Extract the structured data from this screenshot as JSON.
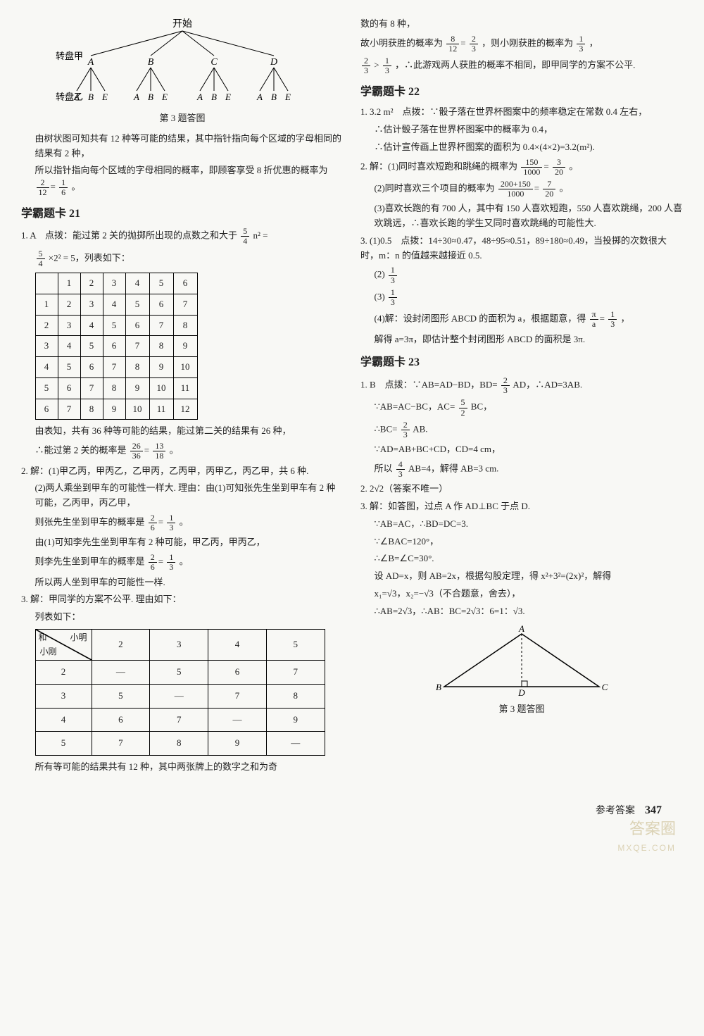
{
  "left": {
    "tree": {
      "root": "开始",
      "row1_label": "转盘甲",
      "row2_label": "转盘乙",
      "level1": [
        "A",
        "B",
        "C",
        "D"
      ],
      "level2": [
        "A",
        "B",
        "E",
        "A",
        "B",
        "E",
        "A",
        "B",
        "E",
        "A",
        "B",
        "E"
      ],
      "caption": "第 3 题答图"
    },
    "tree_text1": "由树状图可知共有 12 种等可能的结果，其中指针指向每个区域的字母相同的结果有 2 种，",
    "tree_text2a": "所以指针指向每个区域的字母相同的概率，即顾客享受 8 折优惠的概率为",
    "tree_text2b": "。",
    "card21_title": "学霸题卡 21",
    "c21_q1a": "1. A　点拨：能过第 2 关的抛掷所出现的点数之和大于",
    "c21_q1b": "n² =",
    "c21_q1c": "×2² = 5，列表如下：",
    "table1": {
      "header": [
        "",
        "1",
        "2",
        "3",
        "4",
        "5",
        "6"
      ],
      "rows": [
        [
          "1",
          "2",
          "3",
          "4",
          "5",
          "6",
          "7"
        ],
        [
          "2",
          "3",
          "4",
          "5",
          "6",
          "7",
          "8"
        ],
        [
          "3",
          "4",
          "5",
          "6",
          "7",
          "8",
          "9"
        ],
        [
          "4",
          "5",
          "6",
          "7",
          "8",
          "9",
          "10"
        ],
        [
          "5",
          "6",
          "7",
          "8",
          "9",
          "10",
          "11"
        ],
        [
          "6",
          "7",
          "8",
          "9",
          "10",
          "11",
          "12"
        ]
      ]
    },
    "c21_t1a": "由表知，共有 36 种等可能的结果，能过第二关的结果有 26 种，",
    "c21_t1b_pre": "∴能过第 2 关的概率是",
    "c21_t1b_post": "。",
    "c21_q2_1": "2. 解：(1)甲乙丙，甲丙乙，乙甲丙，乙丙甲，丙甲乙，丙乙甲，共 6 种.",
    "c21_q2_2": "(2)两人乘坐到甲车的可能性一样大. 理由：由(1)可知张先生坐到甲车有 2 种可能，乙丙甲，丙乙甲，",
    "c21_q2_3_pre": "则张先生坐到甲车的概率是",
    "c21_q2_3_post": "。",
    "c21_q2_4": "由(1)可知李先生坐到甲车有 2 种可能，甲乙丙，甲丙乙，",
    "c21_q2_5_pre": "则李先生坐到甲车的概率是",
    "c21_q2_5_post": "。",
    "c21_q2_6": "所以两人坐到甲车的可能性一样.",
    "c21_q3_1": "3. 解：甲同学的方案不公平. 理由如下：",
    "c21_q3_2": "列表如下：",
    "table2": {
      "diag_tr": "小明",
      "diag_bl": "小刚",
      "diag_corner": "和",
      "cols": [
        "2",
        "3",
        "4",
        "5"
      ],
      "rows": [
        [
          "2",
          "—",
          "5",
          "6",
          "7"
        ],
        [
          "3",
          "5",
          "—",
          "7",
          "8"
        ],
        [
          "4",
          "6",
          "7",
          "—",
          "9"
        ],
        [
          "5",
          "7",
          "8",
          "9",
          "—"
        ]
      ]
    },
    "c21_q3_3": "所有等可能的结果共有 12 种，其中两张牌上的数字之和为奇"
  },
  "right": {
    "cont1": "数的有 8 种，",
    "cont2_a": "故小明获胜的概率为",
    "cont2_b": "，则小刚获胜的概率为",
    "cont2_c": "，",
    "cont3_a": "",
    "cont3_b": ">",
    "cont3_c": "，∴此游戏两人获胜的概率不相同，即甲同学的方案不公平.",
    "card22_title": "学霸题卡 22",
    "c22_q1_1": "1. 3.2 m²　点拨：∵骰子落在世界杯图案中的频率稳定在常数 0.4 左右，",
    "c22_q1_2": "∴估计骰子落在世界杯图案中的概率为 0.4，",
    "c22_q1_3": "∴估计宣传画上世界杯图案的面积为 0.4×(4×2)=3.2(m²).",
    "c22_q2_1_pre": "2. 解：(1)同时喜欢短跑和跳绳的概率为",
    "c22_q2_1_post": "。",
    "c22_q2_2_pre": "(2)同时喜欢三个项目的概率为",
    "c22_q2_2_post": "。",
    "c22_q2_3": "(3)喜欢长跑的有 700 人，其中有 150 人喜欢短跑，550 人喜欢跳绳，200 人喜欢跳远，∴喜欢长跑的学生又同时喜欢跳绳的可能性大.",
    "c22_q3_1": "3. (1)0.5　点拨：14÷30≈0.47，48÷95≈0.51，89÷180≈0.49，当投掷的次数很大时，m：n 的值越来越接近 0.5.",
    "c22_q3_2": "(2)",
    "c22_q3_3": "(3)",
    "c22_q3_4_pre": "(4)解：设封闭图形 ABCD 的面积为 a，根据题意，得",
    "c22_q3_4_post": "，",
    "c22_q3_5": "解得 a=3π，即估计整个封闭图形 ABCD 的面积是 3π.",
    "card23_title": "学霸题卡 23",
    "c23_q1_1_pre": "1. B　点拨：∵AB=AD−BD，BD=",
    "c23_q1_1_post": "AD，∴AD=3AB.",
    "c23_q1_2_pre": "∵AB=AC−BC，AC=",
    "c23_q1_2_post": "BC，",
    "c23_q1_3_pre": "∴BC=",
    "c23_q1_3_post": "AB.",
    "c23_q1_4": "∵AD=AB+BC+CD，CD=4 cm，",
    "c23_q1_5_pre": "所以",
    "c23_q1_5_post": "AB=4，解得 AB=3 cm.",
    "c23_q2": "2. 2√2（答案不唯一）",
    "c23_q3_1": "3. 解：如答图，过点 A 作 AD⊥BC 于点 D.",
    "c23_q3_2": "∵AB=AC，∴BD=DC=3.",
    "c23_q3_3": "∵∠BAC=120°，",
    "c23_q3_4": "∴∠B=∠C=30°.",
    "c23_q3_5": "设 AD=x，则 AB=2x，根据勾股定理，得 x²+3²=(2x)²，解得",
    "c23_q3_6": "x₁=√3，x₂=−√3（不合题意，舍去），",
    "c23_q3_7": "∴AB=2√3，∴AB：BC=2√3：6=1：√3.",
    "triangle_caption": "第 3 题答图",
    "triangle_labels": {
      "A": "A",
      "B": "B",
      "C": "C",
      "D": "D"
    }
  },
  "fractions": {
    "f2_12": {
      "n": "2",
      "d": "12"
    },
    "f1_6": {
      "n": "1",
      "d": "6"
    },
    "f5_4": {
      "n": "5",
      "d": "4"
    },
    "f26_36": {
      "n": "26",
      "d": "36"
    },
    "f13_18": {
      "n": "13",
      "d": "18"
    },
    "f2_6": {
      "n": "2",
      "d": "6"
    },
    "f1_3": {
      "n": "1",
      "d": "3"
    },
    "f8_12": {
      "n": "8",
      "d": "12"
    },
    "f2_3": {
      "n": "2",
      "d": "3"
    },
    "f150_1000": {
      "n": "150",
      "d": "1000"
    },
    "f3_20": {
      "n": "3",
      "d": "20"
    },
    "f350_1000": {
      "n": "200+150",
      "d": "1000"
    },
    "f7_20": {
      "n": "7",
      "d": "20"
    },
    "fpi_a": {
      "n": "π",
      "d": "a"
    },
    "f5_2": {
      "n": "5",
      "d": "2"
    },
    "f4_3": {
      "n": "4",
      "d": "3"
    }
  },
  "footer": {
    "label": "参考答案",
    "page": "347",
    "wm1": "答案圈",
    "wm2": "MXQE.COM"
  }
}
